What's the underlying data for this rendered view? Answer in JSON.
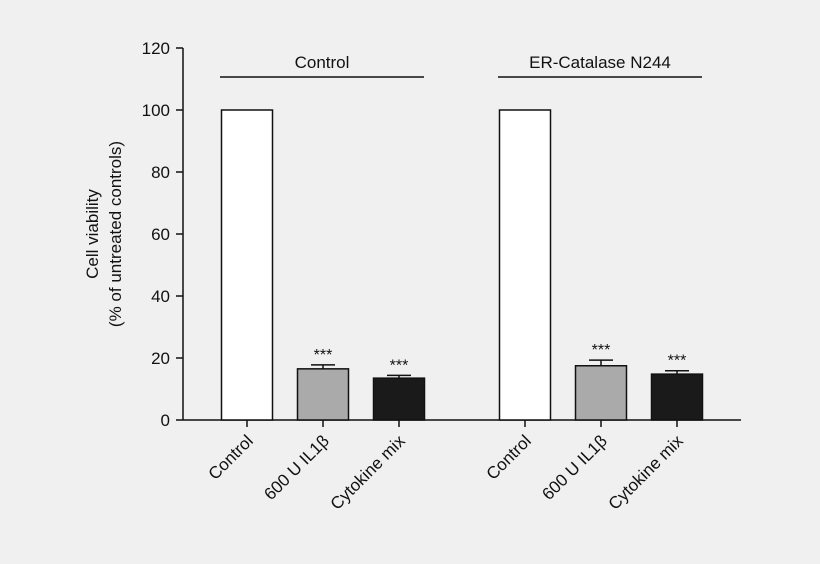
{
  "chart_data": {
    "type": "bar",
    "title": "",
    "ylabel_lines": [
      "Cell viability",
      "(% of untreated controls)"
    ],
    "ylim": [
      0,
      120
    ],
    "yticks": [
      0,
      20,
      40,
      60,
      80,
      100,
      120
    ],
    "groups": [
      {
        "name": "Control",
        "bars": [
          {
            "label": "Control",
            "value": 100,
            "error": 0,
            "color": "#ffffff",
            "sig": ""
          },
          {
            "label": "600 U IL1β",
            "value": 16.5,
            "error": 1.3,
            "color": "#aaaaaa",
            "sig": "***"
          },
          {
            "label": "Cytokine mix",
            "value": 13.5,
            "error": 0.9,
            "color": "#1a1a1a",
            "sig": "***"
          }
        ]
      },
      {
        "name": "ER-Catalase N244",
        "bars": [
          {
            "label": "Control",
            "value": 100,
            "error": 0,
            "color": "#ffffff",
            "sig": ""
          },
          {
            "label": "600 U IL1β",
            "value": 17.5,
            "error": 1.8,
            "color": "#aaaaaa",
            "sig": "***"
          },
          {
            "label": "Cytokine mix",
            "value": 14.8,
            "error": 1.1,
            "color": "#1a1a1a",
            "sig": "***"
          }
        ]
      }
    ],
    "grid": false,
    "legend": "none"
  }
}
